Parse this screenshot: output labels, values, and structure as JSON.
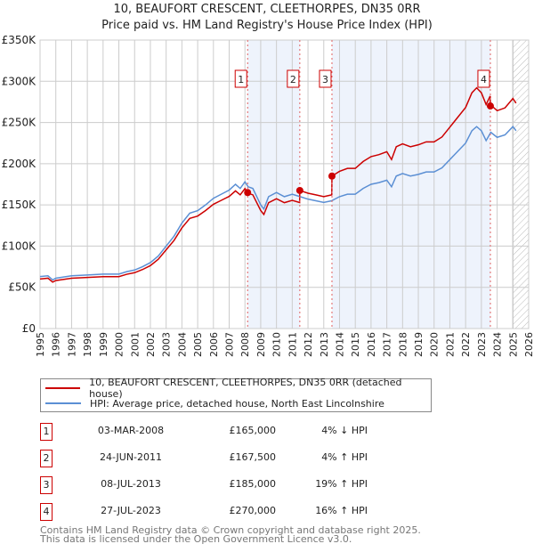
{
  "title": "10, BEAUFORT CRESCENT, CLEETHORPES, DN35 0RR",
  "subtitle": "Price paid vs. HM Land Registry's House Price Index (HPI)",
  "chart_data": {
    "type": "line",
    "ylim": [
      0,
      350000
    ],
    "xlim": [
      1995,
      2026
    ],
    "yticks": [
      {
        "v": 0,
        "label": "£0"
      },
      {
        "v": 50000,
        "label": "£50K"
      },
      {
        "v": 100000,
        "label": "£100K"
      },
      {
        "v": 150000,
        "label": "£150K"
      },
      {
        "v": 200000,
        "label": "£200K"
      },
      {
        "v": 250000,
        "label": "£250K"
      },
      {
        "v": 300000,
        "label": "£300K"
      },
      {
        "v": 350000,
        "label": "£350K"
      }
    ],
    "xticks": [
      "1995",
      "1996",
      "1997",
      "1998",
      "1999",
      "2000",
      "2001",
      "2002",
      "2003",
      "2004",
      "2005",
      "2006",
      "2007",
      "2008",
      "2009",
      "2010",
      "2011",
      "2012",
      "2013",
      "2014",
      "2015",
      "2016",
      "2017",
      "2018",
      "2019",
      "2020",
      "2021",
      "2022",
      "2023",
      "2024",
      "2025",
      "2026"
    ],
    "hpi": {
      "x": [
        1995,
        1995.5,
        1995.8,
        1996,
        1997,
        1998,
        1999,
        2000,
        2000.5,
        2001,
        2001.5,
        2002,
        2002.5,
        2003,
        2003.5,
        2004,
        2004.5,
        2005,
        2005.5,
        2006,
        2006.5,
        2007,
        2007.4,
        2007.7,
        2008,
        2008.2,
        2008.5,
        2009,
        2009.2,
        2009.5,
        2010,
        2010.5,
        2011,
        2011.5,
        2012,
        2012.5,
        2013,
        2013.5,
        2014,
        2014.5,
        2015,
        2015.5,
        2016,
        2016.5,
        2017,
        2017.3,
        2017.6,
        2018,
        2018.5,
        2019,
        2019.5,
        2020,
        2020.5,
        2021,
        2021.5,
        2022,
        2022.4,
        2022.7,
        2023,
        2023.3,
        2023.6,
        2024,
        2024.5,
        2025,
        2025.2
      ],
      "y": [
        63000,
        64000,
        59000,
        61000,
        64000,
        65000,
        66000,
        66000,
        69000,
        71000,
        75000,
        80000,
        88000,
        100000,
        112000,
        128000,
        140000,
        143000,
        150000,
        158000,
        163000,
        168000,
        175000,
        170000,
        178000,
        172000,
        170000,
        150000,
        145000,
        160000,
        165000,
        160000,
        163000,
        160000,
        157000,
        155000,
        153000,
        155000,
        160000,
        163000,
        163000,
        170000,
        175000,
        177000,
        180000,
        172000,
        185000,
        188000,
        185000,
        187000,
        190000,
        190000,
        195000,
        205000,
        215000,
        225000,
        240000,
        245000,
        240000,
        228000,
        238000,
        232000,
        235000,
        245000,
        240000
      ]
    },
    "sales": [
      {
        "n": "1",
        "x": 2008.17,
        "date": "03-MAR-2008",
        "price": 165000,
        "price_label": "£165,000",
        "hpi": "4% ↓ HPI"
      },
      {
        "n": "2",
        "x": 2011.48,
        "date": "24-JUN-2011",
        "price": 167500,
        "price_label": "£167,500",
        "hpi": "4% ↑ HPI"
      },
      {
        "n": "3",
        "x": 2013.52,
        "date": "08-JUL-2013",
        "price": 185000,
        "price_label": "£185,000",
        "hpi": "19% ↑ HPI"
      },
      {
        "n": "4",
        "x": 2023.57,
        "date": "27-JUL-2023",
        "price": 270000,
        "price_label": "£270,000",
        "hpi": "16% ↑ HPI"
      }
    ],
    "legend": [
      "10, BEAUFORT CRESCENT, CLEETHORPES, DN35 0RR (detached house)",
      "HPI: Average price, detached house, North East Lincolnshire"
    ],
    "colors": {
      "price": "#cc0000",
      "hpi": "#5b8fd4",
      "shade": "#eef3fc",
      "grid": "#cccccc"
    }
  },
  "footer": [
    "Contains HM Land Registry data © Crown copyright and database right 2025.",
    "This data is licensed under the Open Government Licence v3.0."
  ]
}
